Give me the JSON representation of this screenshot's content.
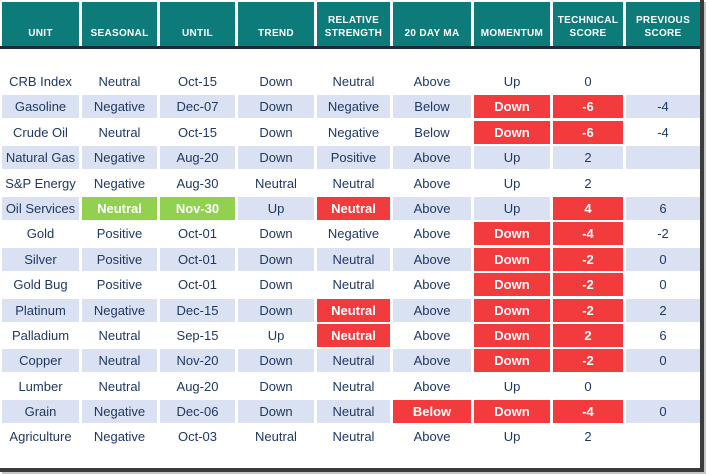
{
  "chart_data": {
    "type": "table",
    "columns": [
      {
        "id": "unit",
        "label": "UNIT"
      },
      {
        "id": "seasonal",
        "label": "SEASONAL"
      },
      {
        "id": "until",
        "label": "UNTIL"
      },
      {
        "id": "trend",
        "label": "TREND"
      },
      {
        "id": "relative-strength",
        "label": "RELATIVE STRENGTH"
      },
      {
        "id": "20-day-ma",
        "label": "20 DAY MA"
      },
      {
        "id": "momentum",
        "label": "MOMENTUM"
      },
      {
        "id": "technical-score",
        "label": "TECHNICAL SCORE"
      },
      {
        "id": "previous-score",
        "label": "PREVIOUS SCORE"
      }
    ],
    "rows": [
      {
        "cells": [
          {
            "t": "CRB Index"
          },
          {
            "t": "Neutral"
          },
          {
            "t": "Oct-15"
          },
          {
            "t": "Down"
          },
          {
            "t": "Neutral"
          },
          {
            "t": "Above"
          },
          {
            "t": "Up"
          },
          {
            "t": "0"
          },
          {
            "t": ""
          }
        ]
      },
      {
        "cells": [
          {
            "t": "Gasoline"
          },
          {
            "t": "Negative"
          },
          {
            "t": "Dec-07"
          },
          {
            "t": "Down"
          },
          {
            "t": "Negative"
          },
          {
            "t": "Below"
          },
          {
            "t": "Down",
            "hl": "red"
          },
          {
            "t": "-6",
            "hl": "red"
          },
          {
            "t": "-4"
          }
        ]
      },
      {
        "cells": [
          {
            "t": "Crude Oil"
          },
          {
            "t": "Neutral"
          },
          {
            "t": "Oct-15"
          },
          {
            "t": "Down"
          },
          {
            "t": "Negative"
          },
          {
            "t": "Below"
          },
          {
            "t": "Down",
            "hl": "red"
          },
          {
            "t": "-6",
            "hl": "red"
          },
          {
            "t": "-4"
          }
        ]
      },
      {
        "cells": [
          {
            "t": "Natural Gas"
          },
          {
            "t": "Negative"
          },
          {
            "t": "Aug-20"
          },
          {
            "t": "Down"
          },
          {
            "t": "Positive"
          },
          {
            "t": "Above"
          },
          {
            "t": "Up"
          },
          {
            "t": "2"
          },
          {
            "t": ""
          }
        ]
      },
      {
        "cells": [
          {
            "t": "S&P Energy"
          },
          {
            "t": "Negative"
          },
          {
            "t": "Aug-30"
          },
          {
            "t": "Neutral"
          },
          {
            "t": "Neutral"
          },
          {
            "t": "Above"
          },
          {
            "t": "Up"
          },
          {
            "t": "2"
          },
          {
            "t": ""
          }
        ]
      },
      {
        "cells": [
          {
            "t": "Oil Services"
          },
          {
            "t": "Neutral",
            "hl": "green"
          },
          {
            "t": "Nov-30",
            "hl": "green"
          },
          {
            "t": "Up"
          },
          {
            "t": "Neutral",
            "hl": "red"
          },
          {
            "t": "Above"
          },
          {
            "t": "Up"
          },
          {
            "t": "4",
            "hl": "red"
          },
          {
            "t": "6"
          }
        ]
      },
      {
        "cells": [
          {
            "t": "Gold"
          },
          {
            "t": "Positive"
          },
          {
            "t": "Oct-01"
          },
          {
            "t": "Down"
          },
          {
            "t": "Negative"
          },
          {
            "t": "Above"
          },
          {
            "t": "Down",
            "hl": "red"
          },
          {
            "t": "-4",
            "hl": "red"
          },
          {
            "t": "-2"
          }
        ]
      },
      {
        "cells": [
          {
            "t": "Silver"
          },
          {
            "t": "Positive"
          },
          {
            "t": "Oct-01"
          },
          {
            "t": "Down"
          },
          {
            "t": "Neutral"
          },
          {
            "t": "Above"
          },
          {
            "t": "Down",
            "hl": "red"
          },
          {
            "t": "-2",
            "hl": "red"
          },
          {
            "t": "0"
          }
        ]
      },
      {
        "cells": [
          {
            "t": "Gold Bug"
          },
          {
            "t": "Positive"
          },
          {
            "t": "Oct-01"
          },
          {
            "t": "Down"
          },
          {
            "t": "Neutral"
          },
          {
            "t": "Above"
          },
          {
            "t": "Down",
            "hl": "red"
          },
          {
            "t": "-2",
            "hl": "red"
          },
          {
            "t": "0"
          }
        ]
      },
      {
        "cells": [
          {
            "t": "Platinum"
          },
          {
            "t": "Negative"
          },
          {
            "t": "Dec-15"
          },
          {
            "t": "Down"
          },
          {
            "t": "Neutral",
            "hl": "red"
          },
          {
            "t": "Above"
          },
          {
            "t": "Down",
            "hl": "red"
          },
          {
            "t": "-2",
            "hl": "red"
          },
          {
            "t": "2"
          }
        ]
      },
      {
        "cells": [
          {
            "t": "Palladium"
          },
          {
            "t": "Neutral"
          },
          {
            "t": "Sep-15"
          },
          {
            "t": "Up"
          },
          {
            "t": "Neutral",
            "hl": "red"
          },
          {
            "t": "Above"
          },
          {
            "t": "Down",
            "hl": "red"
          },
          {
            "t": "2",
            "hl": "red"
          },
          {
            "t": "6"
          }
        ]
      },
      {
        "cells": [
          {
            "t": "Copper"
          },
          {
            "t": "Neutral"
          },
          {
            "t": "Nov-20"
          },
          {
            "t": "Down"
          },
          {
            "t": "Neutral"
          },
          {
            "t": "Above"
          },
          {
            "t": "Down",
            "hl": "red"
          },
          {
            "t": "-2",
            "hl": "red"
          },
          {
            "t": "0"
          }
        ]
      },
      {
        "cells": [
          {
            "t": "Lumber"
          },
          {
            "t": "Neutral"
          },
          {
            "t": "Aug-20"
          },
          {
            "t": "Down"
          },
          {
            "t": "Neutral"
          },
          {
            "t": "Above"
          },
          {
            "t": "Up"
          },
          {
            "t": "0"
          },
          {
            "t": ""
          }
        ]
      },
      {
        "cells": [
          {
            "t": "Grain"
          },
          {
            "t": "Negative"
          },
          {
            "t": "Dec-06"
          },
          {
            "t": "Down"
          },
          {
            "t": "Neutral"
          },
          {
            "t": "Below",
            "hl": "red"
          },
          {
            "t": "Down",
            "hl": "red"
          },
          {
            "t": "-4",
            "hl": "red"
          },
          {
            "t": "0"
          }
        ]
      },
      {
        "cells": [
          {
            "t": "Agriculture"
          },
          {
            "t": "Negative"
          },
          {
            "t": "Oct-03"
          },
          {
            "t": "Neutral"
          },
          {
            "t": "Neutral"
          },
          {
            "t": "Above"
          },
          {
            "t": "Up"
          },
          {
            "t": "2"
          },
          {
            "t": ""
          }
        ]
      }
    ]
  },
  "colors": {
    "header_bg": "#0E7B7B",
    "header_text": "#FFFFFF",
    "body_text": "#1F3864",
    "alt_row_bg": "#D9E1F2",
    "row_bg": "#FFFFFF",
    "negative_highlight": "#F23B3C",
    "positive_highlight": "#92D050",
    "highlight_text": "#FFFFFF",
    "header_divider": "#1B2A3A",
    "frame_border": "#3B3B3B",
    "frame_shadow": "#C6C6C6"
  }
}
